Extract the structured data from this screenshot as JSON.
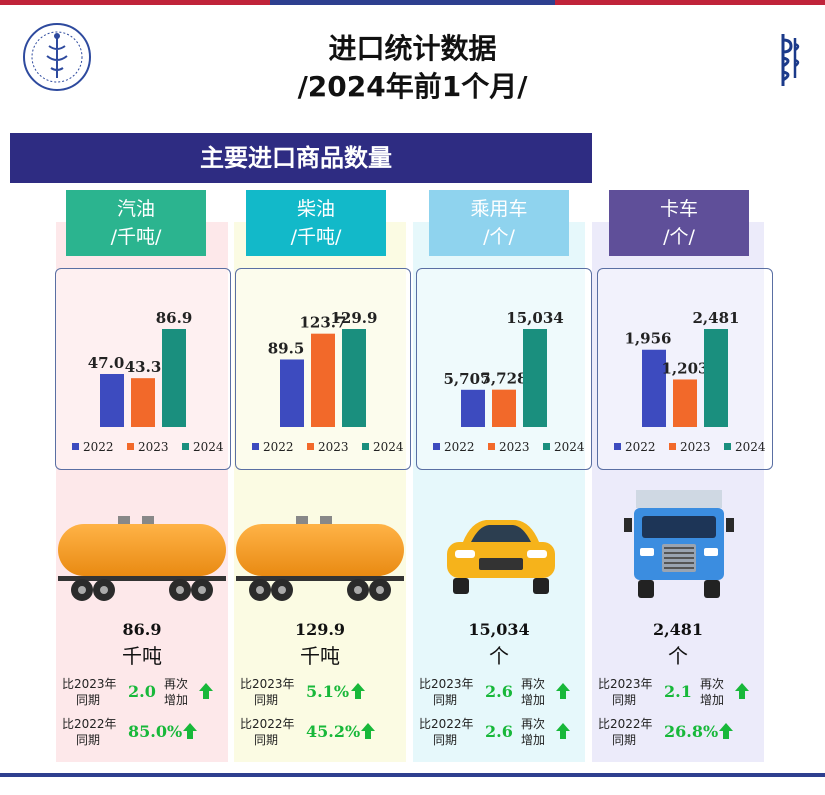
{
  "header": {
    "title_line1": "进口统计数据",
    "title_line2": "/2024年前1个月/"
  },
  "banner": {
    "text": "主要进口商品数量"
  },
  "colors": {
    "banner": "#2e2c82",
    "s2022": "#3d4bbf",
    "s2023": "#f2692a",
    "s2024": "#1a8f7e",
    "increase": "#18b83a"
  },
  "legend": [
    "2022",
    "2023",
    "2024"
  ],
  "categories": [
    {
      "name": "汽油",
      "unit_label": "/千吨/",
      "header_color": "#2bb48f",
      "bg_color": "#fde8ea",
      "values_text": [
        "47.0",
        "43.3",
        "86.9"
      ],
      "total_value": "86.9",
      "total_unit": "千吨",
      "cmp2023_label_1": "比2023年",
      "cmp2023_label_2": "同期",
      "cmp2023_value": "2.0",
      "cmp2023_note_1": "再次",
      "cmp2023_note_2": "增加",
      "cmp2022_label_1": "比2022年",
      "cmp2022_label_2": "同期",
      "cmp2022_value": "85.0%",
      "cmp2022_note_1": "",
      "cmp2022_note_2": "",
      "illustration": "tank-wagon-icon"
    },
    {
      "name": "柴油",
      "unit_label": "/千吨/",
      "header_color": "#12b9c9",
      "bg_color": "#fbfbe3",
      "values_text": [
        "89.5",
        "123.7",
        "129.9"
      ],
      "total_value": "129.9",
      "total_unit": "千吨",
      "cmp2023_label_1": "比2023年",
      "cmp2023_label_2": "同期",
      "cmp2023_value": "5.1%",
      "cmp2023_note_1": "",
      "cmp2023_note_2": "",
      "cmp2022_label_1": "比2022年",
      "cmp2022_label_2": "同期",
      "cmp2022_value": "45.2%",
      "cmp2022_note_1": "",
      "cmp2022_note_2": "",
      "illustration": "tank-wagon-icon"
    },
    {
      "name": "乘用车",
      "unit_label": "/个/",
      "header_color": "#8fd3ee",
      "bg_color": "#e6f8fb",
      "values_text": [
        "5,707",
        "5,728",
        "15,034"
      ],
      "total_value": "15,034",
      "total_unit": "个",
      "cmp2023_label_1": "比2023年",
      "cmp2023_label_2": "同期",
      "cmp2023_value": "2.6",
      "cmp2023_note_1": "再次",
      "cmp2023_note_2": "增加",
      "cmp2022_label_1": "比2022年",
      "cmp2022_label_2": "同期",
      "cmp2022_value": "2.6",
      "cmp2022_note_1": "再次",
      "cmp2022_note_2": "增加",
      "illustration": "car-icon"
    },
    {
      "name": "卡车",
      "unit_label": "/个/",
      "header_color": "#5f4f99",
      "bg_color": "#ecebfa",
      "values_text": [
        "1,956",
        "1,203",
        "2,481"
      ],
      "total_value": "2,481",
      "total_unit": "个",
      "cmp2023_label_1": "比2023年",
      "cmp2023_label_2": "同期",
      "cmp2023_value": "2.1",
      "cmp2023_note_1": "再次",
      "cmp2023_note_2": "增加",
      "cmp2022_label_1": "比2022年",
      "cmp2022_label_2": "同期",
      "cmp2022_value": "26.8%",
      "cmp2022_note_1": "",
      "cmp2022_note_2": "",
      "illustration": "truck-icon"
    }
  ],
  "chart_data": [
    {
      "type": "bar",
      "categories": [
        "2022",
        "2023",
        "2024"
      ],
      "values": [
        47.0,
        43.3,
        86.9
      ]
    },
    {
      "type": "bar",
      "categories": [
        "2022",
        "2023",
        "2024"
      ],
      "values": [
        89.5,
        123.7,
        129.9
      ]
    },
    {
      "type": "bar",
      "categories": [
        "2022",
        "2023",
        "2024"
      ],
      "values": [
        5707,
        5728,
        15034
      ]
    },
    {
      "type": "bar",
      "categories": [
        "2022",
        "2023",
        "2024"
      ],
      "values": [
        1956,
        1203,
        2481
      ]
    }
  ]
}
